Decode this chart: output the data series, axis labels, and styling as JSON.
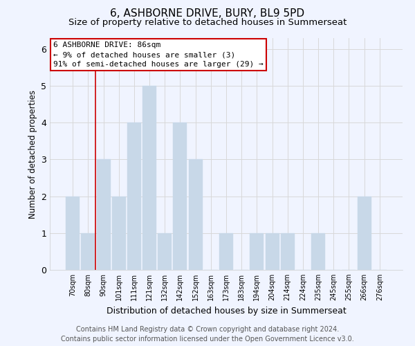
{
  "title": "6, ASHBORNE DRIVE, BURY, BL9 5PD",
  "subtitle": "Size of property relative to detached houses in Summerseat",
  "xlabel": "Distribution of detached houses by size in Summerseat",
  "ylabel": "Number of detached properties",
  "bar_labels": [
    "70sqm",
    "80sqm",
    "90sqm",
    "101sqm",
    "111sqm",
    "121sqm",
    "132sqm",
    "142sqm",
    "152sqm",
    "163sqm",
    "173sqm",
    "183sqm",
    "194sqm",
    "204sqm",
    "214sqm",
    "224sqm",
    "235sqm",
    "245sqm",
    "255sqm",
    "266sqm",
    "276sqm"
  ],
  "bar_values": [
    2,
    1,
    3,
    2,
    4,
    5,
    1,
    4,
    3,
    0,
    1,
    0,
    1,
    1,
    1,
    0,
    1,
    0,
    0,
    2,
    0
  ],
  "bar_color": "#c8d8e8",
  "bar_edge_color": "#c8d8e8",
  "vline_color": "#cc0000",
  "annotation_text": "6 ASHBORNE DRIVE: 86sqm\n← 9% of detached houses are smaller (3)\n91% of semi-detached houses are larger (29) →",
  "annotation_box_color": "white",
  "annotation_box_edgecolor": "#cc0000",
  "ylim": [
    0,
    6.3
  ],
  "yticks": [
    0,
    1,
    2,
    3,
    4,
    5,
    6
  ],
  "grid_color": "#d8d8d8",
  "background_color": "#f0f4ff",
  "footer_line1": "Contains HM Land Registry data © Crown copyright and database right 2024.",
  "footer_line2": "Contains public sector information licensed under the Open Government Licence v3.0.",
  "title_fontsize": 11,
  "subtitle_fontsize": 9.5,
  "annotation_fontsize": 8,
  "footer_fontsize": 7
}
